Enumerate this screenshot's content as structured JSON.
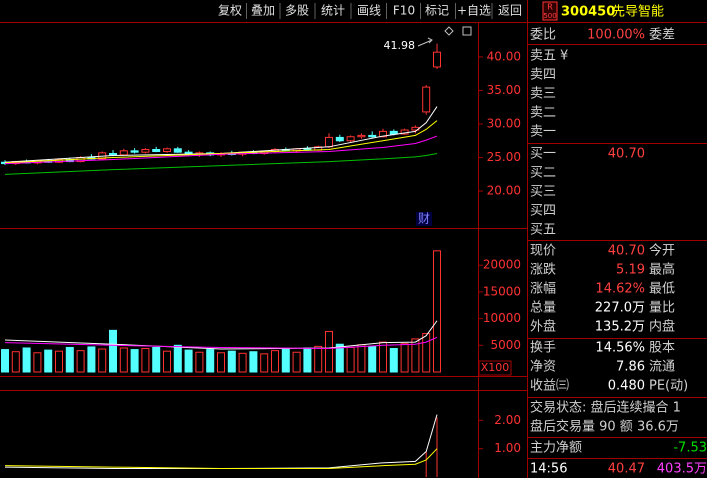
{
  "toolbar": {
    "buttons": [
      "复权",
      "叠加",
      "多股",
      "统计",
      "画线",
      "F10",
      "标记",
      "+自选",
      "返回"
    ]
  },
  "price_chart": {
    "ylim": [
      14.5,
      45.2
    ],
    "yticks": [
      {
        "value": 40,
        "label": "40.00"
      },
      {
        "value": 35,
        "label": "35.00"
      },
      {
        "value": 30,
        "label": "30.00"
      },
      {
        "value": 25,
        "label": "25.00"
      },
      {
        "value": 20,
        "label": "20.00"
      }
    ],
    "high_label": "41.98",
    "event_marker": "财",
    "candles": [
      [
        24.3,
        24.6,
        23.9,
        24.1
      ],
      [
        24.1,
        24.5,
        23.9,
        24.4
      ],
      [
        24.4,
        24.7,
        24.1,
        24.2
      ],
      [
        24.2,
        24.6,
        24.0,
        24.5
      ],
      [
        24.5,
        24.8,
        24.2,
        24.3
      ],
      [
        24.3,
        24.9,
        24.2,
        24.7
      ],
      [
        24.7,
        25.0,
        24.3,
        24.4
      ],
      [
        24.4,
        25.2,
        24.3,
        25.0
      ],
      [
        25.0,
        25.5,
        24.7,
        24.8
      ],
      [
        24.8,
        25.9,
        24.7,
        25.7
      ],
      [
        25.6,
        26.1,
        25.2,
        25.4
      ],
      [
        25.4,
        26.3,
        25.3,
        26.0
      ],
      [
        26.0,
        26.4,
        25.6,
        25.8
      ],
      [
        25.8,
        26.4,
        25.6,
        26.2
      ],
      [
        26.2,
        26.6,
        25.8,
        25.9
      ],
      [
        25.9,
        26.5,
        25.7,
        26.3
      ],
      [
        26.3,
        26.6,
        25.7,
        25.8
      ],
      [
        25.8,
        26.1,
        25.3,
        25.5
      ],
      [
        25.5,
        25.9,
        25.1,
        25.7
      ],
      [
        25.7,
        25.9,
        25.2,
        25.4
      ],
      [
        25.4,
        25.8,
        25.1,
        25.6
      ],
      [
        25.6,
        26.0,
        25.3,
        25.5
      ],
      [
        25.5,
        25.9,
        25.2,
        25.8
      ],
      [
        25.8,
        26.1,
        25.5,
        25.6
      ],
      [
        25.6,
        26.0,
        25.4,
        25.9
      ],
      [
        25.9,
        26.4,
        25.7,
        26.2
      ],
      [
        26.2,
        26.5,
        25.9,
        26.0
      ],
      [
        26.0,
        26.4,
        25.7,
        26.3
      ],
      [
        26.3,
        26.7,
        26.0,
        26.1
      ],
      [
        26.1,
        26.8,
        26.0,
        26.6
      ],
      [
        26.6,
        28.6,
        26.4,
        28.0
      ],
      [
        28.0,
        28.4,
        27.3,
        27.5
      ],
      [
        27.5,
        28.3,
        27.3,
        28.1
      ],
      [
        28.1,
        28.6,
        27.8,
        28.3
      ],
      [
        28.3,
        28.9,
        27.9,
        28.1
      ],
      [
        28.1,
        29.3,
        28.0,
        28.9
      ],
      [
        28.9,
        29.2,
        28.3,
        28.5
      ],
      [
        28.5,
        29.3,
        28.4,
        29.1
      ],
      [
        29.1,
        29.8,
        28.6,
        29.5
      ],
      [
        31.8,
        35.8,
        31.4,
        35.5
      ],
      [
        38.5,
        41.98,
        38.2,
        40.7
      ]
    ],
    "lines": [
      {
        "color": "#ffffff",
        "x": [
          0,
          10,
          20,
          30,
          35,
          38,
          39,
          40
        ],
        "values": [
          24.3,
          25.3,
          25.6,
          26.6,
          28.2,
          28.9,
          30.2,
          32.6
        ]
      },
      {
        "color": "#ffff00",
        "x": [
          0,
          10,
          20,
          30,
          35,
          38,
          39,
          40
        ],
        "values": [
          24.2,
          25.0,
          25.6,
          26.2,
          27.5,
          28.3,
          29.2,
          30.5
        ]
      },
      {
        "color": "#ff00ff",
        "x": [
          0,
          10,
          20,
          30,
          35,
          38,
          39,
          40
        ],
        "values": [
          24.1,
          24.7,
          25.5,
          25.9,
          26.5,
          27.1,
          27.6,
          28.2
        ]
      },
      {
        "color": "#00c000",
        "x": [
          0,
          10,
          20,
          30,
          35,
          38,
          39,
          40
        ],
        "values": [
          22.5,
          23.2,
          23.8,
          24.4,
          24.8,
          25.1,
          25.3,
          25.6
        ]
      }
    ]
  },
  "volume_chart": {
    "ylim": [
      0,
      26600
    ],
    "yticks": [
      20000,
      15000,
      10000,
      5000
    ],
    "unit": "X100",
    "values": [
      4200,
      3800,
      4500,
      3600,
      4100,
      3900,
      4600,
      4000,
      4700,
      4300,
      7800,
      4500,
      4200,
      4400,
      4600,
      3900,
      5000,
      4100,
      3700,
      4200,
      3600,
      3900,
      3500,
      3800,
      3400,
      4000,
      4300,
      3700,
      4500,
      4800,
      7600,
      5200,
      4600,
      5100,
      4800,
      5600,
      4400,
      5300,
      6200,
      7200,
      22700
    ],
    "lines": [
      {
        "color": "#ffffff",
        "x": [
          0,
          10,
          20,
          30,
          35,
          38,
          39,
          40
        ],
        "values": [
          6000,
          5200,
          4300,
          4500,
          5500,
          5600,
          6800,
          9600
        ]
      },
      {
        "color": "#ff00ff",
        "x": [
          0,
          10,
          20,
          30,
          35,
          38,
          39,
          40
        ],
        "values": [
          5500,
          5000,
          4600,
          4400,
          5000,
          5200,
          5600,
          6500
        ]
      }
    ]
  },
  "indicator_chart": {
    "ylim": [
      0,
      3.0
    ],
    "yticks": [
      {
        "value": 2,
        "label": "2.00"
      },
      {
        "value": 1,
        "label": "1.00"
      }
    ],
    "bars": {
      "x": [
        39,
        40
      ],
      "values": [
        0.9,
        2.1
      ]
    },
    "lines": [
      {
        "color": "#ffffff",
        "x": [
          0,
          10,
          20,
          30,
          35,
          38,
          39,
          40
        ],
        "values": [
          0.35,
          0.3,
          0.3,
          0.32,
          0.5,
          0.55,
          0.9,
          2.2
        ]
      },
      {
        "color": "#ffff00",
        "x": [
          0,
          10,
          20,
          30,
          35,
          38,
          39,
          40
        ],
        "values": [
          0.4,
          0.35,
          0.3,
          0.3,
          0.4,
          0.45,
          0.6,
          1.0
        ]
      }
    ]
  },
  "quote": {
    "badge_top": "R",
    "badge_bottom": "500",
    "code": "300450",
    "name": "先导智能",
    "order_ratio": {
      "label": "委比",
      "value": "100.00%",
      "label2": "委差"
    },
    "asks": [
      "卖五",
      "卖四",
      "卖三",
      "卖二",
      "卖一"
    ],
    "ask_symbol": "¥",
    "bids": [
      "买一",
      "买二",
      "买三",
      "买四",
      "买五"
    ],
    "bid1_price": "40.70",
    "stats": [
      [
        "现价",
        "40.70",
        "今开"
      ],
      [
        "涨跌",
        "5.19",
        "最高"
      ],
      [
        "涨幅",
        "14.62%",
        "最低"
      ],
      [
        "总量",
        "227.0万",
        "量比"
      ],
      [
        "外盘",
        "135.2万",
        "内盘"
      ]
    ],
    "stats2": [
      [
        "换手",
        "14.56%",
        "股本"
      ],
      [
        "净资",
        "7.86",
        "流通"
      ],
      [
        "收益㈢",
        "0.480",
        "PE(动)"
      ]
    ],
    "after_hours": [
      "交易状态: 盘后连续撮合 1",
      "盘后交易量 90 额 36.6万"
    ],
    "main_net": {
      "label": "主力净额",
      "value": "-7.53"
    },
    "tick": {
      "time": "14:56",
      "price": "40.47",
      "volume": "403.5万"
    }
  }
}
